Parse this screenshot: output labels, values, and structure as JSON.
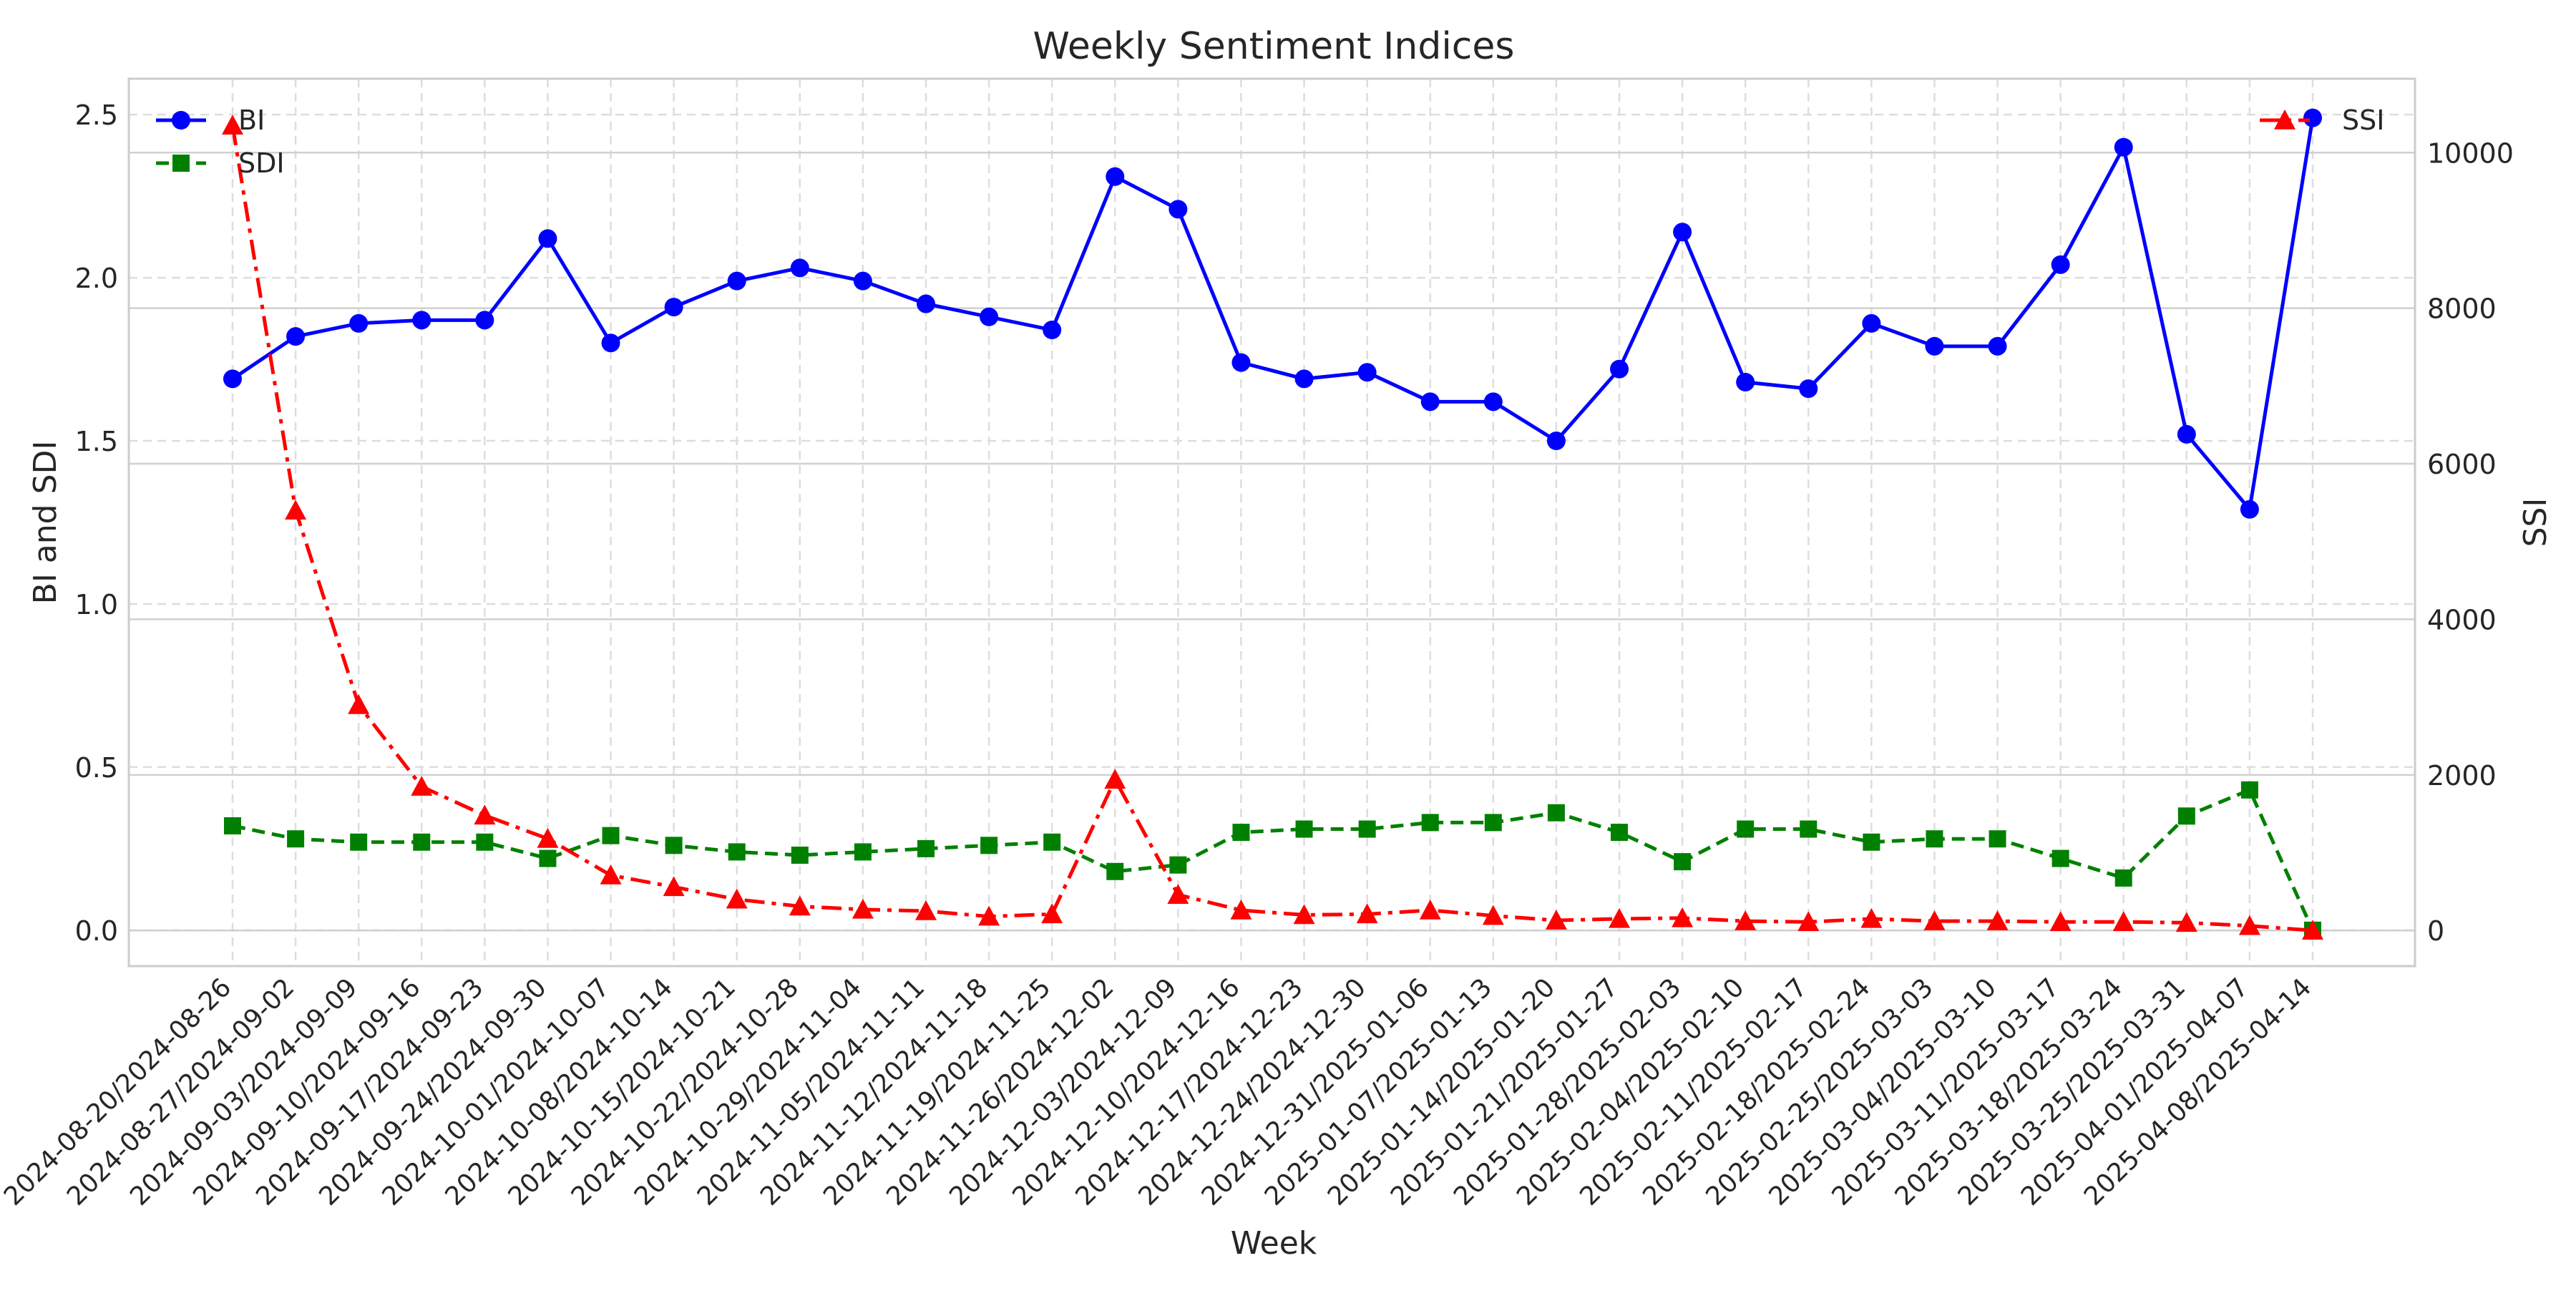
{
  "chart_data": {
    "type": "line",
    "title": "Weekly Sentiment Indices",
    "xlabel": "Week",
    "ylabel_left": "BI and SDI",
    "ylabel_right": "SSI",
    "ylim_left": [
      -0.11,
      2.61
    ],
    "ylim_right": [
      -458,
      10950
    ],
    "yticks_left": [
      "0.0",
      "0.5",
      "1.0",
      "1.5",
      "2.0",
      "2.5"
    ],
    "yticks_left_values": [
      0,
      0.5,
      1.0,
      1.5,
      2.0,
      2.5
    ],
    "yticks_right": [
      "0",
      "2000",
      "4000",
      "6000",
      "8000",
      "10000"
    ],
    "yticks_right_values": [
      0,
      2000,
      4000,
      6000,
      8000,
      10000
    ],
    "grid": true,
    "legend_left": "top-left",
    "legend_right": "top-right",
    "categories": [
      "2024-08-20/2024-08-26",
      "2024-08-27/2024-09-02",
      "2024-09-03/2024-09-09",
      "2024-09-10/2024-09-16",
      "2024-09-17/2024-09-23",
      "2024-09-24/2024-09-30",
      "2024-10-01/2024-10-07",
      "2024-10-08/2024-10-14",
      "2024-10-15/2024-10-21",
      "2024-10-22/2024-10-28",
      "2024-10-29/2024-11-04",
      "2024-11-05/2024-11-11",
      "2024-11-12/2024-11-18",
      "2024-11-19/2024-11-25",
      "2024-11-26/2024-12-02",
      "2024-12-03/2024-12-09",
      "2024-12-10/2024-12-16",
      "2024-12-17/2024-12-23",
      "2024-12-24/2024-12-30",
      "2024-12-31/2025-01-06",
      "2025-01-07/2025-01-13",
      "2025-01-14/2025-01-20",
      "2025-01-21/2025-01-27",
      "2025-01-28/2025-02-03",
      "2025-02-04/2025-02-10",
      "2025-02-11/2025-02-17",
      "2025-02-18/2025-02-24",
      "2025-02-25/2025-03-03",
      "2025-03-04/2025-03-10",
      "2025-03-11/2025-03-17",
      "2025-03-18/2025-03-24",
      "2025-03-25/2025-03-31",
      "2025-04-01/2025-04-07",
      "2025-04-08/2025-04-14"
    ],
    "series": [
      {
        "name": "BI",
        "axis": "left",
        "color": "#0000ff",
        "marker": "circle",
        "dash": "solid",
        "values": [
          1.69,
          1.82,
          1.86,
          1.87,
          1.87,
          2.12,
          1.8,
          1.91,
          1.99,
          2.03,
          1.99,
          1.92,
          1.88,
          1.84,
          2.31,
          2.21,
          1.74,
          1.69,
          1.71,
          1.62,
          1.62,
          1.5,
          1.72,
          2.14,
          1.68,
          1.66,
          1.86,
          1.79,
          1.79,
          2.04,
          2.4,
          1.52,
          1.29,
          2.49
        ]
      },
      {
        "name": "SDI",
        "axis": "left",
        "color": "#008000",
        "marker": "square",
        "dash": "dashed",
        "values": [
          0.32,
          0.28,
          0.27,
          0.27,
          0.27,
          0.22,
          0.29,
          0.26,
          0.24,
          0.23,
          0.24,
          0.25,
          0.26,
          0.27,
          0.18,
          0.2,
          0.3,
          0.31,
          0.31,
          0.33,
          0.33,
          0.36,
          0.3,
          0.21,
          0.31,
          0.31,
          0.27,
          0.28,
          0.28,
          0.22,
          0.16,
          0.35,
          0.43,
          0.0
        ]
      },
      {
        "name": "SSI",
        "axis": "right",
        "color": "#ff0000",
        "marker": "triangle",
        "dash": "dashdot",
        "values": [
          10350,
          5400,
          2900,
          1850,
          1480,
          1180,
          710,
          560,
          400,
          310,
          270,
          250,
          180,
          210,
          1940,
          460,
          260,
          200,
          210,
          260,
          190,
          130,
          150,
          160,
          120,
          110,
          150,
          120,
          120,
          110,
          110,
          100,
          60,
          0
        ]
      }
    ]
  }
}
